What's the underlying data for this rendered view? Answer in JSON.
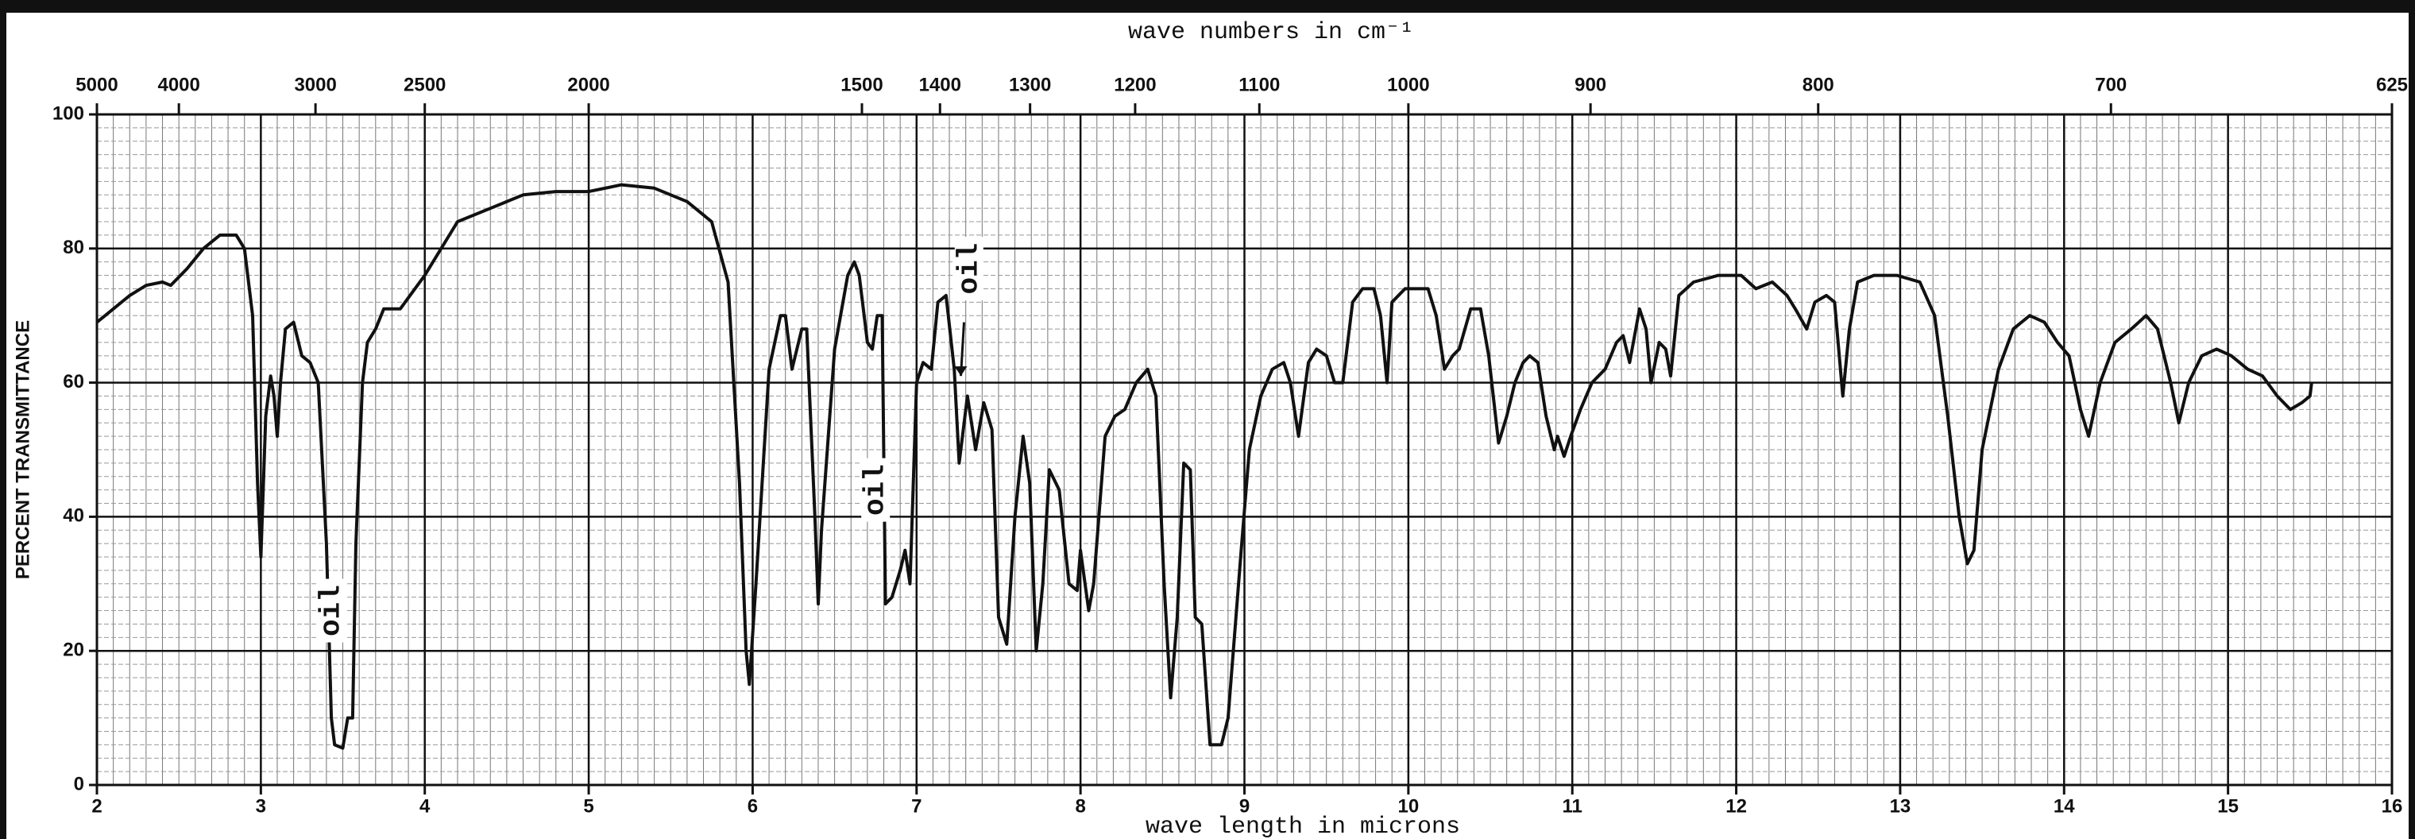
{
  "chart_data": {
    "type": "line",
    "x2_label": "wave numbers in cm⁻¹",
    "xlabel": "wave length in microns",
    "ylabel": "PERCENT TRANSMITTANCE",
    "annotations": [
      "oil",
      "oil",
      "oil"
    ],
    "color": "#111111",
    "grid": true,
    "xlim": [
      2,
      16
    ],
    "xticks": [
      2,
      3,
      4,
      5,
      6,
      7,
      8,
      9,
      10,
      11,
      12,
      13,
      14,
      15,
      16
    ],
    "x2ticks": [
      5000,
      4000,
      3000,
      2500,
      2000,
      1500,
      1400,
      1300,
      1200,
      1100,
      1000,
      900,
      800,
      700,
      625
    ],
    "ylim": [
      0,
      100
    ],
    "yticks": [
      0,
      20,
      40,
      60,
      80,
      100
    ],
    "x": [
      2.0,
      2.1,
      2.2,
      2.3,
      2.4,
      2.45,
      2.55,
      2.65,
      2.75,
      2.85,
      2.9,
      2.95,
      2.98,
      3.0,
      3.03,
      3.06,
      3.08,
      3.1,
      3.12,
      3.15,
      3.2,
      3.25,
      3.3,
      3.35,
      3.4,
      3.43,
      3.45,
      3.5,
      3.53,
      3.56,
      3.58,
      3.62,
      3.65,
      3.7,
      3.75,
      3.85,
      4.0,
      4.2,
      4.4,
      4.6,
      4.8,
      5.0,
      5.2,
      5.4,
      5.6,
      5.75,
      5.85,
      5.92,
      5.96,
      5.98,
      6.02,
      6.1,
      6.17,
      6.2,
      6.24,
      6.3,
      6.33,
      6.38,
      6.4,
      6.42,
      6.5,
      6.58,
      6.62,
      6.65,
      6.7,
      6.73,
      6.76,
      6.79,
      6.81,
      6.85,
      6.9,
      6.93,
      6.96,
      7.0,
      7.04,
      7.09,
      7.13,
      7.18,
      7.23,
      7.26,
      7.31,
      7.36,
      7.41,
      7.46,
      7.5,
      7.55,
      7.6,
      7.65,
      7.69,
      7.73,
      7.77,
      7.81,
      7.87,
      7.93,
      7.98,
      8.0,
      8.05,
      8.08,
      8.15,
      8.21,
      8.27,
      8.34,
      8.41,
      8.46,
      8.51,
      8.55,
      8.59,
      8.63,
      8.67,
      8.7,
      8.74,
      8.79,
      8.86,
      8.9,
      8.98,
      9.03,
      9.1,
      9.17,
      9.24,
      9.28,
      9.33,
      9.39,
      9.44,
      9.5,
      9.55,
      9.6,
      9.66,
      9.72,
      9.79,
      9.83,
      9.87,
      9.9,
      9.98,
      10.12,
      10.17,
      10.22,
      10.27,
      10.31,
      10.38,
      10.44,
      10.49,
      10.55,
      10.6,
      10.65,
      10.7,
      10.74,
      10.79,
      10.84,
      10.89,
      10.91,
      10.95,
      10.99,
      11.05,
      11.12,
      11.2,
      11.27,
      11.31,
      11.35,
      11.41,
      11.45,
      11.48,
      11.53,
      11.57,
      11.6,
      11.65,
      11.74,
      11.89,
      12.03,
      12.12,
      12.22,
      12.31,
      12.36,
      12.43,
      12.48,
      12.55,
      12.6,
      12.65,
      12.69,
      12.74,
      12.84,
      12.98,
      13.12,
      13.21,
      13.29,
      13.36,
      13.41,
      13.45,
      13.5,
      13.6,
      13.69,
      13.79,
      13.88,
      13.96,
      14.03,
      14.1,
      14.15,
      14.22,
      14.31,
      14.41,
      14.5,
      14.57,
      14.65,
      14.7,
      14.76,
      14.84,
      14.93,
      15.02,
      15.12,
      15.21,
      15.3,
      15.38,
      15.45,
      15.5,
      15.51
    ],
    "values": [
      69,
      71,
      73,
      74.5,
      75,
      74.5,
      77,
      80,
      82,
      82,
      80,
      70,
      45,
      34,
      55,
      61,
      58,
      52,
      60,
      68,
      69,
      64,
      63,
      60,
      36,
      10,
      6,
      5.5,
      10,
      10,
      36,
      60,
      66,
      68,
      71,
      71,
      76,
      84,
      86,
      88,
      88.5,
      88.5,
      89.5,
      89,
      87,
      84,
      75,
      45,
      20,
      15,
      30,
      62,
      70,
      70,
      62,
      68,
      68,
      40,
      27,
      38,
      65,
      76,
      78,
      76,
      66,
      65,
      70,
      70,
      27,
      28,
      32,
      35,
      30,
      60,
      63,
      62,
      72,
      73,
      62,
      48,
      58,
      50,
      57,
      53,
      25,
      21,
      40,
      52,
      45,
      20,
      30,
      47,
      44,
      30,
      29,
      35,
      26,
      30,
      52,
      55,
      56,
      60,
      62,
      58,
      30,
      13,
      25,
      48,
      47,
      25,
      24,
      6,
      6,
      10,
      35,
      50,
      58,
      62,
      63,
      60,
      52,
      63,
      65,
      64,
      60,
      60,
      72,
      74,
      74,
      70,
      60,
      72,
      74,
      74,
      70,
      62,
      64,
      65,
      71,
      71,
      64,
      51,
      55,
      60,
      63,
      64,
      63,
      55,
      50,
      52,
      49,
      52,
      56,
      60,
      62,
      66,
      67,
      63,
      71,
      68,
      60,
      66,
      65,
      61,
      73,
      75,
      76,
      76,
      74,
      75,
      73,
      71,
      68,
      72,
      73,
      72,
      58,
      68,
      75,
      76,
      76,
      75,
      70,
      55,
      40,
      33,
      35,
      50,
      62,
      68,
      70,
      69,
      66,
      64,
      56,
      52,
      60,
      66,
      68,
      70,
      68,
      60,
      54,
      60,
      64,
      65,
      64,
      62,
      61,
      58,
      56,
      57,
      58,
      60
    ]
  }
}
